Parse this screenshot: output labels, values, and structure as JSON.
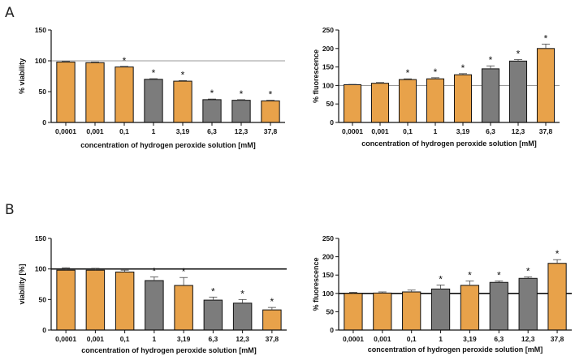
{
  "panel_labels": [
    "A",
    "B"
  ],
  "colors": {
    "orange": "#E8A24A",
    "gray": "#7C7C7C",
    "axis": "#111111",
    "errorbar": "#444444"
  },
  "chart_data": [
    {
      "id": "A-left",
      "panel": "A",
      "type": "bar",
      "categories": [
        "0,0001",
        "0,001",
        "0,1",
        "1",
        "3,19",
        "6,3",
        "12,3",
        "37,8"
      ],
      "values": [
        98,
        97,
        90,
        70,
        67,
        37,
        36,
        35
      ],
      "errors": [
        1,
        1,
        1,
        1,
        1,
        1,
        1,
        1
      ],
      "significant": [
        false,
        false,
        true,
        true,
        true,
        true,
        true,
        true
      ],
      "fill": [
        "orange",
        "orange",
        "orange",
        "gray",
        "orange",
        "gray",
        "gray",
        "orange"
      ],
      "xlabel": "concentration of hydrogen peroxide solution [mM]",
      "ylabel": "% viability",
      "ylim": [
        0,
        150
      ],
      "yticks": [
        "0",
        "50",
        "100",
        "150"
      ],
      "reference_line": 100,
      "reference_line_style": "thin"
    },
    {
      "id": "A-right",
      "panel": "A",
      "type": "bar",
      "categories": [
        "0,0001",
        "0,001",
        "0,1",
        "1",
        "3,19",
        "6,3",
        "12,3",
        "37,8"
      ],
      "values": [
        102,
        106,
        116,
        118,
        129,
        145,
        166,
        200
      ],
      "errors": [
        1,
        2,
        2,
        3,
        3,
        8,
        4,
        12
      ],
      "significant": [
        false,
        false,
        true,
        true,
        true,
        true,
        true,
        true
      ],
      "fill": [
        "orange",
        "orange",
        "orange",
        "orange",
        "orange",
        "gray",
        "gray",
        "orange"
      ],
      "xlabel": "concentration of hydrogen peroxide solution [mM]",
      "ylabel": "% fluorescence",
      "ylim": [
        0,
        250
      ],
      "yticks": [
        "0",
        "50",
        "100",
        "150",
        "200",
        "250"
      ],
      "reference_line": 100,
      "reference_line_style": "thin"
    },
    {
      "id": "B-left",
      "panel": "B",
      "type": "bar",
      "categories": [
        "0,0001",
        "0,001",
        "0,1",
        "1",
        "3,19",
        "6,3",
        "12,3",
        "37,8"
      ],
      "values": [
        98,
        98,
        95,
        81,
        73,
        49,
        44,
        33
      ],
      "errors": [
        4,
        3,
        3,
        6,
        13,
        5,
        6,
        4
      ],
      "significant": [
        false,
        false,
        false,
        true,
        true,
        true,
        true,
        true
      ],
      "fill": [
        "orange",
        "orange",
        "orange",
        "gray",
        "orange",
        "gray",
        "gray",
        "orange"
      ],
      "xlabel": "concentration of hydrogen peroxide solution [mM]",
      "ylabel": "viability [%]",
      "ylim": [
        0,
        150
      ],
      "yticks": [
        "0",
        "50",
        "100",
        "150"
      ],
      "reference_line": 100,
      "reference_line_style": "thick"
    },
    {
      "id": "B-right",
      "panel": "B",
      "type": "bar",
      "categories": [
        "0,0001",
        "0,001",
        "0,1",
        "1",
        "3,19",
        "6,3",
        "12,3",
        "37,8"
      ],
      "values": [
        100,
        101,
        104,
        112,
        122,
        130,
        141,
        182
      ],
      "errors": [
        3,
        3,
        5,
        11,
        12,
        4,
        4,
        10
      ],
      "significant": [
        false,
        false,
        false,
        true,
        true,
        true,
        true,
        true
      ],
      "fill": [
        "orange",
        "orange",
        "orange",
        "gray",
        "orange",
        "gray",
        "gray",
        "orange"
      ],
      "xlabel": "concentration of hydrogen peroxide solution [mM]",
      "ylabel": "% fluorescence",
      "ylim": [
        0,
        250
      ],
      "yticks": [
        "0",
        "50",
        "100",
        "150",
        "200",
        "250"
      ],
      "reference_line": 100,
      "reference_line_style": "thick"
    }
  ]
}
